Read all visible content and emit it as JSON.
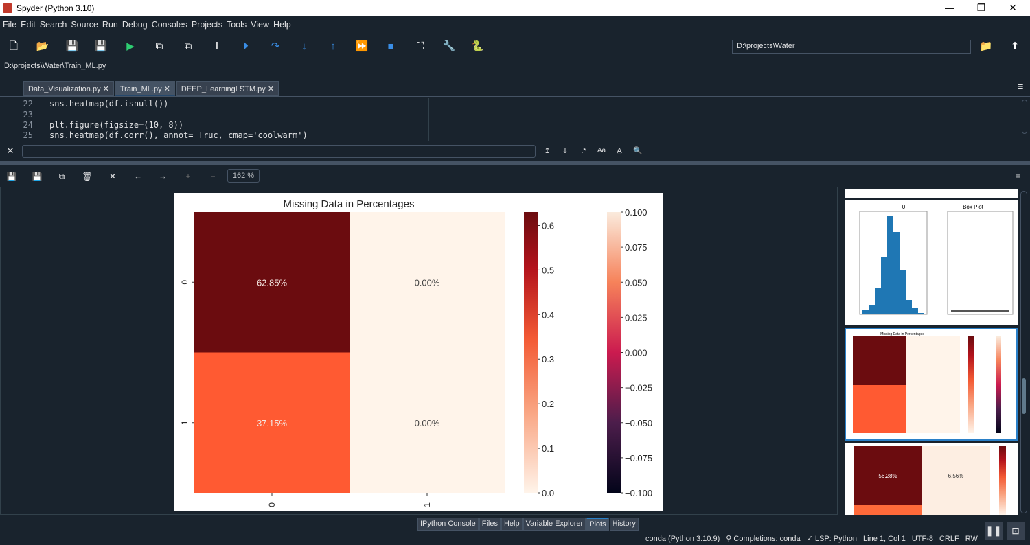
{
  "window": {
    "title": "Spyder (Python 3.10)",
    "minimize": "—",
    "maximize": "❐",
    "close": "✕"
  },
  "menu": [
    "File",
    "Edit",
    "Search",
    "Source",
    "Run",
    "Debug",
    "Consoles",
    "Projects",
    "Tools",
    "View",
    "Help"
  ],
  "toolbar": {
    "cwd": "D:\\projects\\Water"
  },
  "editor": {
    "path": "D:\\projects\\Water\\Train_ML.py",
    "tabs": [
      {
        "label": "Data_Visualization.py",
        "active": false
      },
      {
        "label": "Train_ML.py",
        "active": true
      },
      {
        "label": "DEEP_LearningLSTM.py",
        "active": false
      }
    ],
    "lines": [
      {
        "n": "22",
        "code": "sns.heatmap(df.isnull())"
      },
      {
        "n": "23",
        "code": ""
      },
      {
        "n": "24",
        "code": "plt.figure(figsize=(10, 8))"
      },
      {
        "n": "25",
        "code": "sns.heatmap(df.corr(), annot= Truc, cmap='coolwarm')"
      }
    ]
  },
  "plots": {
    "zoom": "162 %"
  },
  "chart_data": {
    "type": "heatmap",
    "title": "Missing Data in Percentages",
    "rows": [
      "0",
      "1"
    ],
    "columns": [
      "0",
      "1"
    ],
    "values": [
      [
        0.6285,
        0.0
      ],
      [
        0.3715,
        0.0
      ]
    ],
    "annotations": [
      [
        "62.85%",
        "0.00%"
      ],
      [
        "37.15%",
        "0.00%"
      ]
    ],
    "colorbars": [
      {
        "range": [
          0,
          0.63
        ],
        "ticks": [
          "0.0",
          "0.1",
          "0.2",
          "0.3",
          "0.4",
          "0.5",
          "0.6"
        ],
        "tick_values": [
          0,
          0.1,
          0.2,
          0.3,
          0.4,
          0.5,
          0.6
        ]
      },
      {
        "range": [
          -0.1,
          0.1
        ],
        "ticks": [
          "−0.100",
          "−0.075",
          "−0.050",
          "−0.025",
          "0.000",
          "0.025",
          "0.050",
          "0.075",
          "0.100"
        ],
        "tick_values": [
          -0.1,
          -0.075,
          -0.05,
          -0.025,
          0,
          0.025,
          0.05,
          0.075,
          0.1
        ]
      }
    ],
    "colors": {
      "high": "#6b0c0f",
      "mid": "#ff5a32",
      "low": "#fff4ea"
    }
  },
  "thumbnails": {
    "hist_title": "0",
    "box_title": "Box Plot",
    "heatmap_title": "Missing Data in Percentages",
    "third_annotations": [
      "56.28%",
      "6.56%"
    ]
  },
  "bottom_tabs": [
    {
      "label": "IPython Console"
    },
    {
      "label": "Files"
    },
    {
      "label": "Help"
    },
    {
      "label": "Variable Explorer"
    },
    {
      "label": "Plots",
      "active": true
    },
    {
      "label": "History"
    }
  ],
  "status": {
    "env": "conda (Python 3.10.9)",
    "completions": "Completions: conda",
    "lsp": "✓ LSP: Python",
    "position": "Line 1, Col 1",
    "encoding": "UTF-8",
    "eol": "CRLF",
    "perm": "RW"
  }
}
